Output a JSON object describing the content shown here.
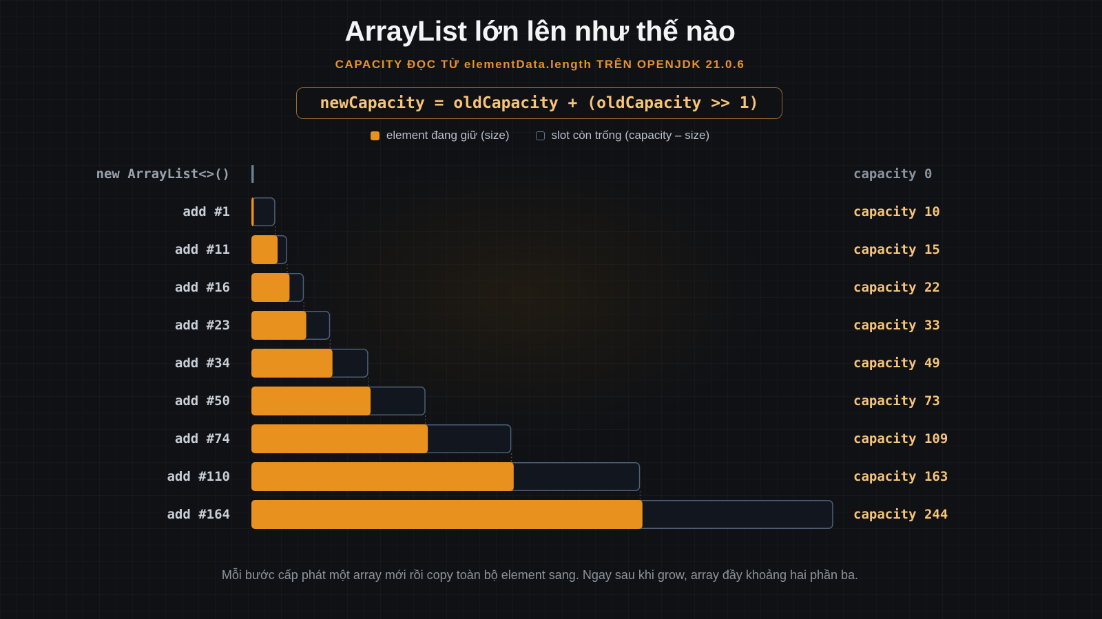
{
  "title": "ArrayList lớn lên như thế nào",
  "subtitle": "CAPACITY ĐỌC TỪ elementData.length TRÊN OPENJDK 21.0.6",
  "formula": "newCapacity = oldCapacity + (oldCapacity >> 1)",
  "legend": {
    "filled": "element đang giữ (size)",
    "empty": "slot còn trống (capacity – size)"
  },
  "footer": "Mỗi bước cấp phát một array mới rồi copy toàn bộ element sang. Ngay sau khi grow, array đầy khoảng hai phần ba.",
  "colors": {
    "size_fill": "#e8911f",
    "capacity_fill": "#12161e",
    "capacity_stroke": "#4d5f77",
    "label_text": "#c9ced6",
    "label_muted": "#9aa3ae",
    "capacity_text": "#f6c47a",
    "capacity_muted": "#8a94a0",
    "accent": "#e8912a"
  },
  "chart_data": {
    "type": "bar",
    "orientation": "horizontal",
    "categories": [
      "new ArrayList<>()",
      "add #1",
      "add #11",
      "add #16",
      "add #23",
      "add #34",
      "add #50",
      "add #74",
      "add #110",
      "add #164"
    ],
    "series": [
      {
        "name": "element đang giữ (size)",
        "values": [
          0,
          1,
          11,
          16,
          23,
          34,
          50,
          74,
          110,
          164
        ]
      },
      {
        "name": "slot còn trống (capacity – size)",
        "values": [
          0,
          9,
          4,
          6,
          10,
          15,
          23,
          35,
          53,
          80
        ]
      }
    ],
    "capacity": [
      0,
      10,
      15,
      22,
      33,
      49,
      73,
      109,
      163,
      244
    ],
    "capacity_labels": [
      "capacity 0",
      "capacity 10",
      "capacity 15",
      "capacity 22",
      "capacity 33",
      "capacity 49",
      "capacity 73",
      "capacity 109",
      "capacity 163",
      "capacity 244"
    ],
    "xlim": [
      0,
      244
    ],
    "stacked": true,
    "grid": false,
    "legend_position": "top-center"
  }
}
